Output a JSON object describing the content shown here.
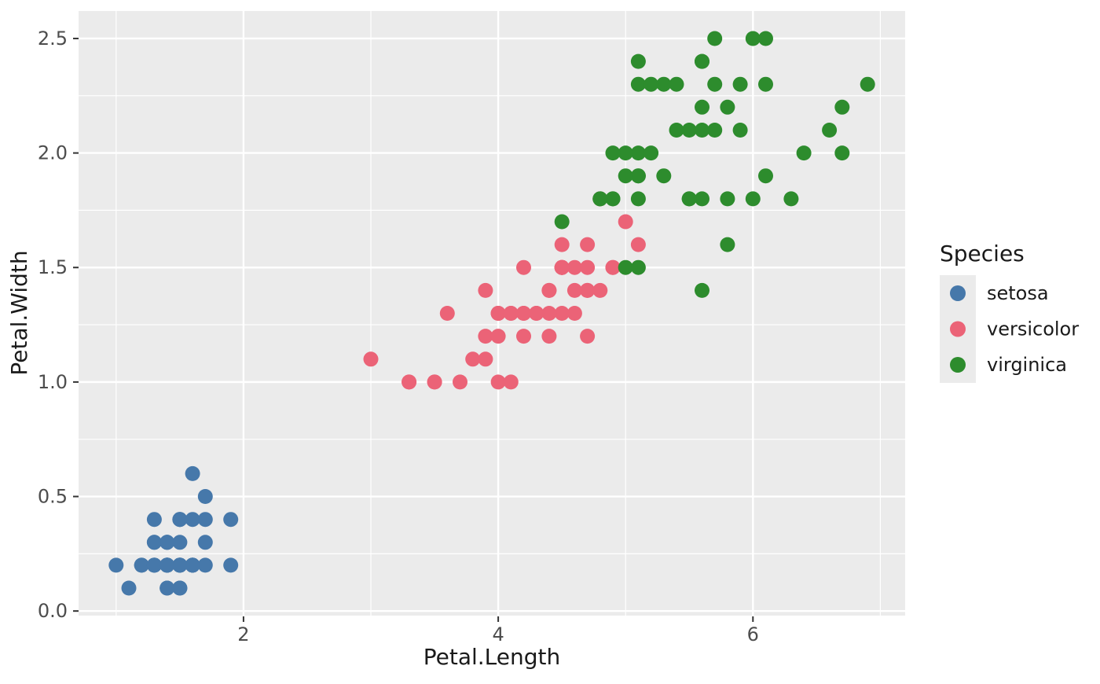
{
  "chart_data": {
    "type": "scatter",
    "title": "",
    "xlabel": "Petal.Length",
    "ylabel": "Petal.Width",
    "xlim": [
      0.705,
      7.195
    ],
    "ylim": [
      -0.02,
      2.62
    ],
    "x_major_ticks": [
      2,
      4,
      6
    ],
    "x_major_tick_labels": [
      "2",
      "4",
      "6"
    ],
    "x_minor_ticks": [
      1,
      3,
      5,
      7
    ],
    "y_major_ticks": [
      0.0,
      0.5,
      1.0,
      1.5,
      2.0,
      2.5
    ],
    "y_major_tick_labels": [
      "0.0",
      "0.5",
      "1.0",
      "1.5",
      "2.0",
      "2.5"
    ],
    "y_minor_ticks": [
      0.25,
      0.75,
      1.25,
      1.75,
      2.25
    ],
    "grid": true,
    "legend": {
      "title": "Species",
      "position": "right",
      "entries": [
        "setosa",
        "versicolor",
        "virginica"
      ]
    },
    "theme": {
      "panel_background": "#EBEBEB",
      "grid_color": "#FFFFFF",
      "tick_mark_color": "#333333",
      "tick_label_color": "#4D4D4D",
      "axis_title_color": "#1A1A1A"
    },
    "series": [
      {
        "name": "setosa",
        "color": "#4678AA",
        "points": [
          [
            1.4,
            0.2
          ],
          [
            1.4,
            0.2
          ],
          [
            1.3,
            0.2
          ],
          [
            1.5,
            0.2
          ],
          [
            1.4,
            0.2
          ],
          [
            1.7,
            0.4
          ],
          [
            1.4,
            0.3
          ],
          [
            1.5,
            0.2
          ],
          [
            1.4,
            0.2
          ],
          [
            1.5,
            0.1
          ],
          [
            1.5,
            0.2
          ],
          [
            1.6,
            0.2
          ],
          [
            1.4,
            0.1
          ],
          [
            1.1,
            0.1
          ],
          [
            1.2,
            0.2
          ],
          [
            1.5,
            0.4
          ],
          [
            1.3,
            0.4
          ],
          [
            1.4,
            0.3
          ],
          [
            1.7,
            0.3
          ],
          [
            1.5,
            0.3
          ],
          [
            1.7,
            0.2
          ],
          [
            1.5,
            0.4
          ],
          [
            1.0,
            0.2
          ],
          [
            1.7,
            0.5
          ],
          [
            1.9,
            0.2
          ],
          [
            1.6,
            0.2
          ],
          [
            1.6,
            0.4
          ],
          [
            1.5,
            0.2
          ],
          [
            1.4,
            0.2
          ],
          [
            1.6,
            0.2
          ],
          [
            1.6,
            0.2
          ],
          [
            1.5,
            0.4
          ],
          [
            1.5,
            0.1
          ],
          [
            1.4,
            0.2
          ],
          [
            1.5,
            0.2
          ],
          [
            1.2,
            0.2
          ],
          [
            1.3,
            0.2
          ],
          [
            1.4,
            0.1
          ],
          [
            1.3,
            0.2
          ],
          [
            1.5,
            0.2
          ],
          [
            1.3,
            0.3
          ],
          [
            1.3,
            0.3
          ],
          [
            1.3,
            0.2
          ],
          [
            1.6,
            0.6
          ],
          [
            1.9,
            0.4
          ],
          [
            1.4,
            0.3
          ],
          [
            1.6,
            0.2
          ],
          [
            1.4,
            0.2
          ],
          [
            1.5,
            0.2
          ],
          [
            1.4,
            0.2
          ]
        ]
      },
      {
        "name": "versicolor",
        "color": "#EB6377",
        "points": [
          [
            4.7,
            1.4
          ],
          [
            4.5,
            1.5
          ],
          [
            4.9,
            1.5
          ],
          [
            4.0,
            1.3
          ],
          [
            4.6,
            1.5
          ],
          [
            4.5,
            1.3
          ],
          [
            4.7,
            1.6
          ],
          [
            3.3,
            1.0
          ],
          [
            4.6,
            1.3
          ],
          [
            3.9,
            1.4
          ],
          [
            3.5,
            1.0
          ],
          [
            4.2,
            1.5
          ],
          [
            4.0,
            1.0
          ],
          [
            4.7,
            1.4
          ],
          [
            3.6,
            1.3
          ],
          [
            4.4,
            1.4
          ],
          [
            4.5,
            1.5
          ],
          [
            4.1,
            1.0
          ],
          [
            4.5,
            1.5
          ],
          [
            3.9,
            1.1
          ],
          [
            4.8,
            1.8
          ],
          [
            4.0,
            1.3
          ],
          [
            4.9,
            1.5
          ],
          [
            4.7,
            1.2
          ],
          [
            4.3,
            1.3
          ],
          [
            4.4,
            1.4
          ],
          [
            4.8,
            1.4
          ],
          [
            5.0,
            1.7
          ],
          [
            4.5,
            1.5
          ],
          [
            3.5,
            1.0
          ],
          [
            3.8,
            1.1
          ],
          [
            3.7,
            1.0
          ],
          [
            3.9,
            1.2
          ],
          [
            5.1,
            1.6
          ],
          [
            4.5,
            1.5
          ],
          [
            4.5,
            1.6
          ],
          [
            4.7,
            1.5
          ],
          [
            4.4,
            1.3
          ],
          [
            4.1,
            1.3
          ],
          [
            4.0,
            1.3
          ],
          [
            4.4,
            1.2
          ],
          [
            4.6,
            1.4
          ],
          [
            4.0,
            1.2
          ],
          [
            3.3,
            1.0
          ],
          [
            4.2,
            1.3
          ],
          [
            4.2,
            1.2
          ],
          [
            4.2,
            1.3
          ],
          [
            4.3,
            1.3
          ],
          [
            3.0,
            1.1
          ],
          [
            4.1,
            1.3
          ]
        ]
      },
      {
        "name": "virginica",
        "color": "#2D8C2D",
        "points": [
          [
            6.0,
            2.5
          ],
          [
            5.1,
            1.9
          ],
          [
            5.9,
            2.1
          ],
          [
            5.6,
            1.8
          ],
          [
            5.8,
            2.2
          ],
          [
            6.6,
            2.1
          ],
          [
            4.5,
            1.7
          ],
          [
            6.3,
            1.8
          ],
          [
            5.8,
            1.8
          ],
          [
            6.1,
            2.5
          ],
          [
            5.1,
            2.0
          ],
          [
            5.3,
            1.9
          ],
          [
            5.5,
            2.1
          ],
          [
            5.0,
            2.0
          ],
          [
            5.1,
            2.4
          ],
          [
            5.3,
            2.3
          ],
          [
            5.5,
            1.8
          ],
          [
            6.7,
            2.2
          ],
          [
            6.9,
            2.3
          ],
          [
            5.0,
            1.5
          ],
          [
            5.7,
            2.3
          ],
          [
            4.9,
            2.0
          ],
          [
            6.7,
            2.0
          ],
          [
            4.9,
            1.8
          ],
          [
            5.7,
            2.1
          ],
          [
            6.0,
            1.8
          ],
          [
            4.8,
            1.8
          ],
          [
            4.9,
            1.8
          ],
          [
            5.6,
            2.1
          ],
          [
            5.8,
            1.6
          ],
          [
            6.1,
            1.9
          ],
          [
            6.4,
            2.0
          ],
          [
            5.6,
            2.2
          ],
          [
            5.1,
            1.5
          ],
          [
            5.6,
            1.4
          ],
          [
            6.1,
            2.3
          ],
          [
            5.6,
            2.4
          ],
          [
            5.5,
            1.8
          ],
          [
            4.8,
            1.8
          ],
          [
            5.4,
            2.1
          ],
          [
            5.6,
            2.4
          ],
          [
            5.1,
            2.3
          ],
          [
            5.1,
            1.9
          ],
          [
            5.9,
            2.3
          ],
          [
            5.7,
            2.5
          ],
          [
            5.2,
            2.3
          ],
          [
            5.0,
            1.9
          ],
          [
            5.2,
            2.0
          ],
          [
            5.4,
            2.3
          ],
          [
            5.1,
            1.8
          ]
        ]
      }
    ]
  }
}
